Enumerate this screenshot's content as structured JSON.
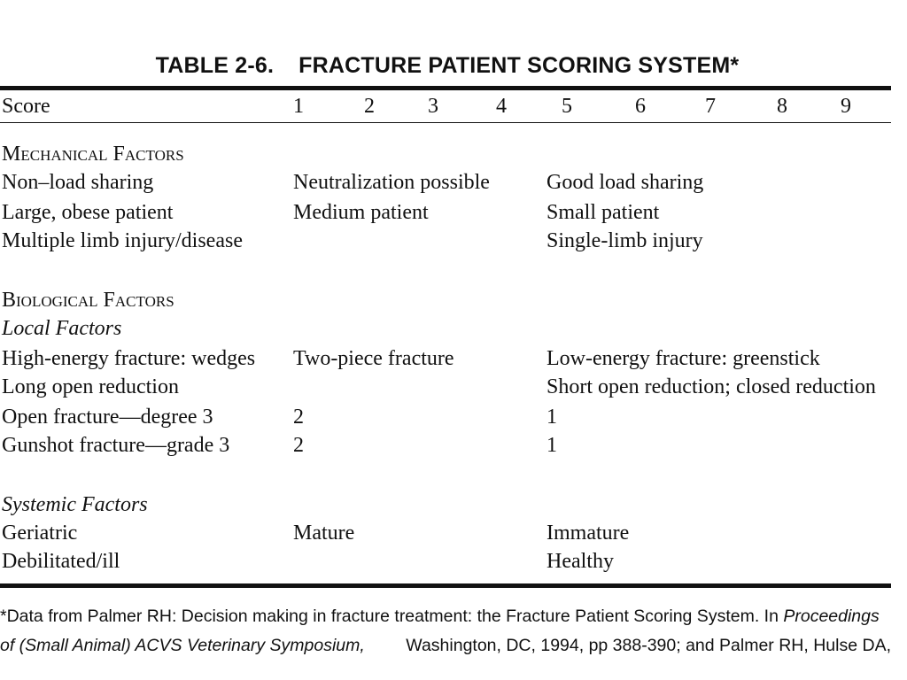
{
  "table": {
    "number": "TABLE 2-6.",
    "title": "FRACTURE PATIENT SCORING SYSTEM*",
    "header": {
      "label": "Score",
      "scores": [
        "1",
        "2",
        "3",
        "4",
        "5",
        "6",
        "7",
        "8",
        "9"
      ]
    },
    "mechanical": {
      "heading": "Mechanical Factors",
      "rows": [
        {
          "label": "Non–load sharing",
          "mid": "Neutralization possible",
          "right": "Good load sharing"
        },
        {
          "label": "Large, obese patient",
          "mid": "Medium patient",
          "right": "Small patient"
        },
        {
          "label": "Multiple limb injury/disease",
          "mid": "",
          "right": "Single-limb injury"
        }
      ]
    },
    "biological": {
      "heading": "Biological Factors",
      "local": {
        "heading": "Local Factors",
        "rows": [
          {
            "label": "High-energy fracture: wedges",
            "mid": "Two-piece fracture",
            "right": "Low-energy fracture: greenstick"
          },
          {
            "label": "Long open reduction",
            "mid": "",
            "right": "Short open reduction; closed reduction"
          },
          {
            "label": "Open fracture—degree 3",
            "mid": "2",
            "right": "1"
          },
          {
            "label": "Gunshot fracture—grade 3",
            "mid": "2",
            "right": "1"
          }
        ]
      },
      "systemic": {
        "heading": "Systemic Factors",
        "rows": [
          {
            "label": "Geriatric",
            "mid": "Mature",
            "right": "Immature"
          },
          {
            "label": "Debilitated/ill",
            "mid": "",
            "right": "Healthy"
          }
        ]
      }
    }
  },
  "footnote": {
    "line1_a": "*Data from Palmer RH: Decision making in fracture treatment: the Fracture Patient Scoring System. In ",
    "line1_b": "Proceedings",
    "line2_a": "of (Small Animal) ACVS Veterinary Symposium,",
    "line2_b": "Washington, DC, 1994, pp 388-390; and Palmer RH, Hulse DA,"
  }
}
